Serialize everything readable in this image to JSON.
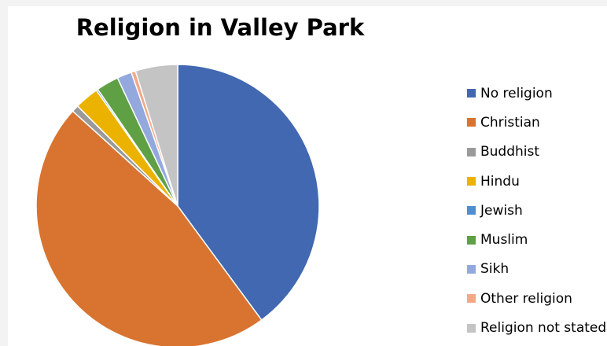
{
  "chart_data": {
    "type": "pie",
    "title": "Religion in Valley Park",
    "legend_position": "right",
    "categories": [
      "No religion",
      "Christian",
      "Buddhist",
      "Hindu",
      "Jewish",
      "Muslim",
      "Sikh",
      "Other religion",
      "Religion not stated"
    ],
    "values": [
      40.5,
      47.5,
      0.8,
      2.8,
      0.2,
      2.6,
      1.7,
      0.5,
      4.9
    ],
    "colors": [
      "#4168b0",
      "#d87430",
      "#9a9a9a",
      "#ebb200",
      "#4f8fd0",
      "#5fa044",
      "#93a9de",
      "#f3a888",
      "#c4c4c4"
    ]
  }
}
